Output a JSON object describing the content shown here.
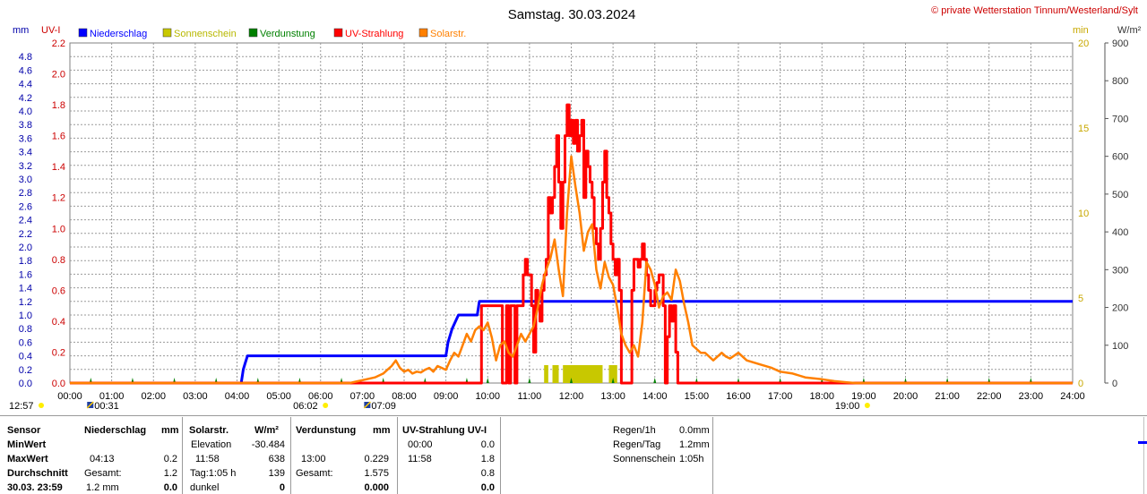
{
  "header": {
    "title": "Samstag. 30.03.2024",
    "copyright": "© private Wetterstation Tinnum/Westerland/Sylt"
  },
  "chart_data": {
    "type": "line",
    "title": "Samstag. 30.03.2024",
    "xlabel": "",
    "x_ticks": [
      "00:00",
      "01:00",
      "02:00",
      "03:00",
      "04:00",
      "05:00",
      "06:00",
      "07:00",
      "08:00",
      "09:00",
      "10:00",
      "11:00",
      "12:00",
      "13:00",
      "14:00",
      "15:00",
      "16:00",
      "17:00",
      "18:00",
      "19:00",
      "20:00",
      "21:00",
      "22:00",
      "23:00",
      "24:00"
    ],
    "xlim": [
      0,
      24
    ],
    "axes": {
      "mm": {
        "label": "mm",
        "ylim": [
          0,
          5.0
        ],
        "ticks": [
          "0.0",
          "0.2",
          "0.4",
          "0.6",
          "0.8",
          "1.0",
          "1.2",
          "1.4",
          "1.6",
          "1.8",
          "2.0",
          "2.2",
          "2.4",
          "2.6",
          "2.8",
          "3.0",
          "3.2",
          "3.4",
          "3.6",
          "3.8",
          "4.0",
          "4.2",
          "4.4",
          "4.6",
          "4.8"
        ]
      },
      "uvi": {
        "label": "UV-I",
        "ylim": [
          0,
          2.2
        ],
        "ticks": [
          "0.0",
          "0.2",
          "0.4",
          "0.6",
          "0.8",
          "1.0",
          "1.2",
          "1.4",
          "1.6",
          "1.8",
          "2.0",
          "2.2"
        ]
      },
      "min": {
        "label": "min",
        "ylim": [
          0,
          20
        ],
        "ticks": [
          "0",
          "5",
          "10",
          "15",
          "20"
        ]
      },
      "wm2": {
        "label": "W/m²",
        "ylim": [
          0,
          900
        ],
        "ticks": [
          "0",
          "100",
          "200",
          "300",
          "400",
          "500",
          "600",
          "700",
          "800",
          "900"
        ]
      }
    },
    "legend": [
      {
        "name": "Niederschlag",
        "color": "#0000ff"
      },
      {
        "name": "Sonnenschein",
        "color": "#c8c800"
      },
      {
        "name": "Verdunstung",
        "color": "#008000"
      },
      {
        "name": "UV-Strahlung",
        "color": "#ff0000"
      },
      {
        "name": "Solarstr.",
        "color": "#ff8000"
      }
    ],
    "sun_events": [
      {
        "label": "12:57",
        "time": 0.0,
        "kind": "sun"
      },
      {
        "label": "00:31",
        "time": 0.52,
        "kind": "moon"
      },
      {
        "label": "06:02",
        "time": 6.03,
        "kind": "sun"
      },
      {
        "label": "07:09",
        "time": 7.15,
        "kind": "moon"
      },
      {
        "label": "19:00",
        "time": 19.0,
        "kind": "sun"
      }
    ],
    "series": [
      {
        "name": "Niederschlag",
        "color": "#0000ff",
        "axis": "mm",
        "x": [
          0,
          4.1,
          4.15,
          4.2,
          4.25,
          9.0,
          9.05,
          9.15,
          9.3,
          9.75,
          9.8,
          24
        ],
        "y": [
          0,
          0,
          0.2,
          0.3,
          0.4,
          0.4,
          0.6,
          0.8,
          1.0,
          1.0,
          1.2,
          1.2
        ]
      },
      {
        "name": "UV-Strahlung",
        "color": "#ff0000",
        "axis": "uvi",
        "x": [
          0,
          9.8,
          9.85,
          10.3,
          10.35,
          10.45,
          10.5,
          10.55,
          10.6,
          10.65,
          10.7,
          10.75,
          10.8,
          10.85,
          10.9,
          10.95,
          11.0,
          11.05,
          11.1,
          11.15,
          11.2,
          11.25,
          11.3,
          11.35,
          11.4,
          11.45,
          11.5,
          11.55,
          11.6,
          11.65,
          11.7,
          11.75,
          11.8,
          11.85,
          11.9,
          11.95,
          12.0,
          12.05,
          12.1,
          12.15,
          12.2,
          12.25,
          12.3,
          12.35,
          12.4,
          12.45,
          12.5,
          12.55,
          12.6,
          12.65,
          12.7,
          12.75,
          12.8,
          12.85,
          12.9,
          12.95,
          13.0,
          13.05,
          13.1,
          13.15,
          13.2,
          13.25,
          13.3,
          13.35,
          13.4,
          13.45,
          13.5,
          13.55,
          13.6,
          13.65,
          13.7,
          13.75,
          13.8,
          13.85,
          13.9,
          13.95,
          14.0,
          14.05,
          14.1,
          14.15,
          14.2,
          14.25,
          14.3,
          14.35,
          14.4,
          14.45,
          14.5,
          14.55,
          14.6,
          14.65,
          14.7,
          14.75,
          14.8,
          14.85,
          14.9,
          14.95,
          15.0,
          15.05,
          15.1,
          15.15,
          15.2,
          15.25,
          15.3,
          24
        ],
        "y": [
          0,
          0,
          0.5,
          0.5,
          0,
          0.5,
          0,
          0.5,
          0.5,
          0,
          0.5,
          0.5,
          0.5,
          0.7,
          0.8,
          0.7,
          0.7,
          0.5,
          0.2,
          0.6,
          0.5,
          0.4,
          0.6,
          0.7,
          0.8,
          1.2,
          1.1,
          1.2,
          1.4,
          1.6,
          1.3,
          1.0,
          1.3,
          1.6,
          1.8,
          1.6,
          1.7,
          1.55,
          1.7,
          1.5,
          1.6,
          1.7,
          1.2,
          1.5,
          1.4,
          1.3,
          1.2,
          1.0,
          0.9,
          0.8,
          1.0,
          1.3,
          1.5,
          1.2,
          1.1,
          0.9,
          0.8,
          0.7,
          0.8,
          0.6,
          0,
          0,
          0,
          0,
          0,
          0.6,
          0.8,
          0.8,
          0.75,
          0.8,
          0.9,
          0.8,
          0.7,
          0.6,
          0.5,
          0.5,
          0.6,
          0.65,
          0.7,
          0.7,
          0.5,
          0,
          0.3,
          0.5,
          0.4,
          0.5,
          0.2,
          0,
          0,
          0,
          0,
          0,
          0,
          0,
          0,
          0,
          0,
          0,
          0,
          0,
          0,
          0,
          0,
          0
        ],
        "x2": [
          9.8,
          9.85,
          10.3,
          10.35,
          10.4,
          10.45,
          10.5,
          10.55,
          10.6,
          10.65,
          10.7,
          10.75,
          10.8,
          10.85,
          10.9,
          10.95,
          11.0,
          11.05,
          11.1,
          11.15,
          11.2,
          11.25,
          11.3,
          11.35,
          11.4,
          11.45,
          11.5,
          11.55,
          11.6,
          11.65,
          11.7,
          11.75,
          11.8,
          11.85,
          11.9,
          11.95,
          12.0,
          12.05,
          12.1,
          12.15,
          12.2,
          12.25,
          12.3,
          12.35,
          12.4,
          12.45,
          12.5,
          12.55,
          12.6,
          12.65,
          12.7,
          12.75,
          12.8,
          12.85,
          12.9,
          12.95,
          13.0,
          13.05,
          13.1,
          13.15,
          13.2,
          13.25,
          13.3,
          13.4,
          13.5,
          13.55,
          13.6,
          13.65,
          13.7,
          13.75,
          13.8,
          13.85,
          13.9,
          13.95,
          14.0,
          14.05,
          14.1,
          14.15,
          14.2,
          14.25,
          14.3,
          14.35,
          14.4,
          14.45,
          14.5,
          14.55,
          14.6,
          14.65,
          14.7,
          14.75,
          14.8,
          14.85,
          14.9,
          14.95,
          15.0,
          15.05,
          15.1,
          15.15,
          15.2,
          15.25,
          15.3
        ]
      },
      {
        "name": "Solarstr.",
        "color": "#ff8000",
        "axis": "wm2",
        "x": [
          0,
          6.7,
          6.9,
          7.1,
          7.3,
          7.5,
          7.6,
          7.7,
          7.8,
          7.9,
          8.0,
          8.1,
          8.2,
          8.3,
          8.4,
          8.5,
          8.6,
          8.7,
          8.8,
          8.9,
          9.0,
          9.1,
          9.2,
          9.3,
          9.4,
          9.5,
          9.6,
          9.7,
          9.8,
          9.9,
          10.0,
          10.1,
          10.2,
          10.3,
          10.4,
          10.5,
          10.6,
          10.7,
          10.8,
          10.9,
          11.0,
          11.1,
          11.2,
          11.3,
          11.4,
          11.5,
          11.6,
          11.7,
          11.8,
          11.9,
          12.0,
          12.1,
          12.2,
          12.3,
          12.4,
          12.5,
          12.6,
          12.7,
          12.8,
          12.9,
          13.0,
          13.1,
          13.2,
          13.3,
          13.4,
          13.5,
          13.6,
          13.7,
          13.8,
          13.9,
          14.0,
          14.1,
          14.2,
          14.3,
          14.4,
          14.5,
          14.6,
          14.7,
          14.8,
          14.9,
          15.0,
          15.1,
          15.2,
          15.3,
          15.4,
          15.5,
          15.6,
          15.7,
          15.8,
          16.0,
          16.2,
          16.5,
          16.8,
          17.0,
          17.3,
          17.6,
          18.0,
          18.3,
          18.6,
          18.8,
          24
        ],
        "y": [
          0,
          0,
          5,
          10,
          15,
          25,
          35,
          45,
          60,
          40,
          30,
          35,
          25,
          30,
          28,
          35,
          40,
          30,
          45,
          40,
          35,
          60,
          80,
          70,
          100,
          130,
          110,
          140,
          150,
          140,
          160,
          120,
          60,
          100,
          110,
          80,
          70,
          100,
          130,
          110,
          130,
          150,
          200,
          260,
          300,
          330,
          380,
          300,
          230,
          450,
          600,
          520,
          450,
          350,
          400,
          420,
          300,
          250,
          320,
          280,
          260,
          200,
          130,
          100,
          80,
          100,
          70,
          160,
          320,
          300,
          260,
          200,
          230,
          240,
          220,
          300,
          270,
          210,
          160,
          100,
          90,
          80,
          80,
          70,
          60,
          70,
          80,
          70,
          65,
          80,
          60,
          50,
          40,
          30,
          25,
          15,
          10,
          5,
          2,
          0,
          0
        ]
      },
      {
        "name": "Sonnenschein",
        "color": "#c8c800",
        "axis": "min",
        "bars": [
          {
            "from": 11.35,
            "to": 11.45,
            "value": 1
          },
          {
            "from": 11.55,
            "to": 11.7,
            "value": 1
          },
          {
            "from": 11.8,
            "to": 12.75,
            "value": 1
          },
          {
            "from": 12.9,
            "to": 13.1,
            "value": 1
          }
        ]
      },
      {
        "name": "Verdunstung",
        "color": "#008000",
        "axis": "wm2",
        "markers": [
          0.5,
          1.5,
          2.5,
          3.5,
          4.5,
          5.5,
          6.5,
          7.5,
          8.5,
          9.5,
          10.0,
          11.0,
          12.0,
          13.0,
          14.0,
          15.0,
          16.0,
          17.0,
          18.0,
          19.0,
          20.0,
          21.0,
          22.0,
          23.0
        ]
      }
    ]
  },
  "table": {
    "col1": {
      "header": "Sensor",
      "rows": [
        "MinWert",
        "MaxWert",
        "Durchschnitt",
        "30.03.  23:59"
      ]
    },
    "niederschlag": {
      "header": "Niederschlag",
      "unit": "mm",
      "max_time": "04:13",
      "max_val": "0.2",
      "avg_label": "Gesamt:",
      "avg_val": "1.2",
      "last_label": "1.2 mm",
      "last_val": "0.0"
    },
    "solar": {
      "header": "Solarstr.",
      "unit": "W/m²",
      "min_label": "Elevation",
      "min_val": "-30.484",
      "max_time": "11:58",
      "max_val": "638",
      "avg_label": "Tag:1:05 h",
      "avg_val": "139",
      "last_label": "dunkel",
      "last_val": "0"
    },
    "verdunstung": {
      "header": "Verdunstung",
      "unit": "mm",
      "max_time": "13:00",
      "max_val": "0.229",
      "avg_label": "Gesamt:",
      "avg_val": "1.575",
      "last_val": "0.000"
    },
    "uv": {
      "header": "UV-Strahlung UV-I",
      "min_time": "00:00",
      "min_val": "0.0",
      "max_time": "11:58",
      "max_val": "1.8",
      "avg_val": "0.8",
      "last_val": "0.0"
    },
    "summary": [
      {
        "label": "Regen/1h",
        "value": "0.0mm"
      },
      {
        "label": "Regen/Tag",
        "value": "1.2mm"
      },
      {
        "label": "Sonnenschein",
        "value": "1:05h"
      }
    ]
  }
}
